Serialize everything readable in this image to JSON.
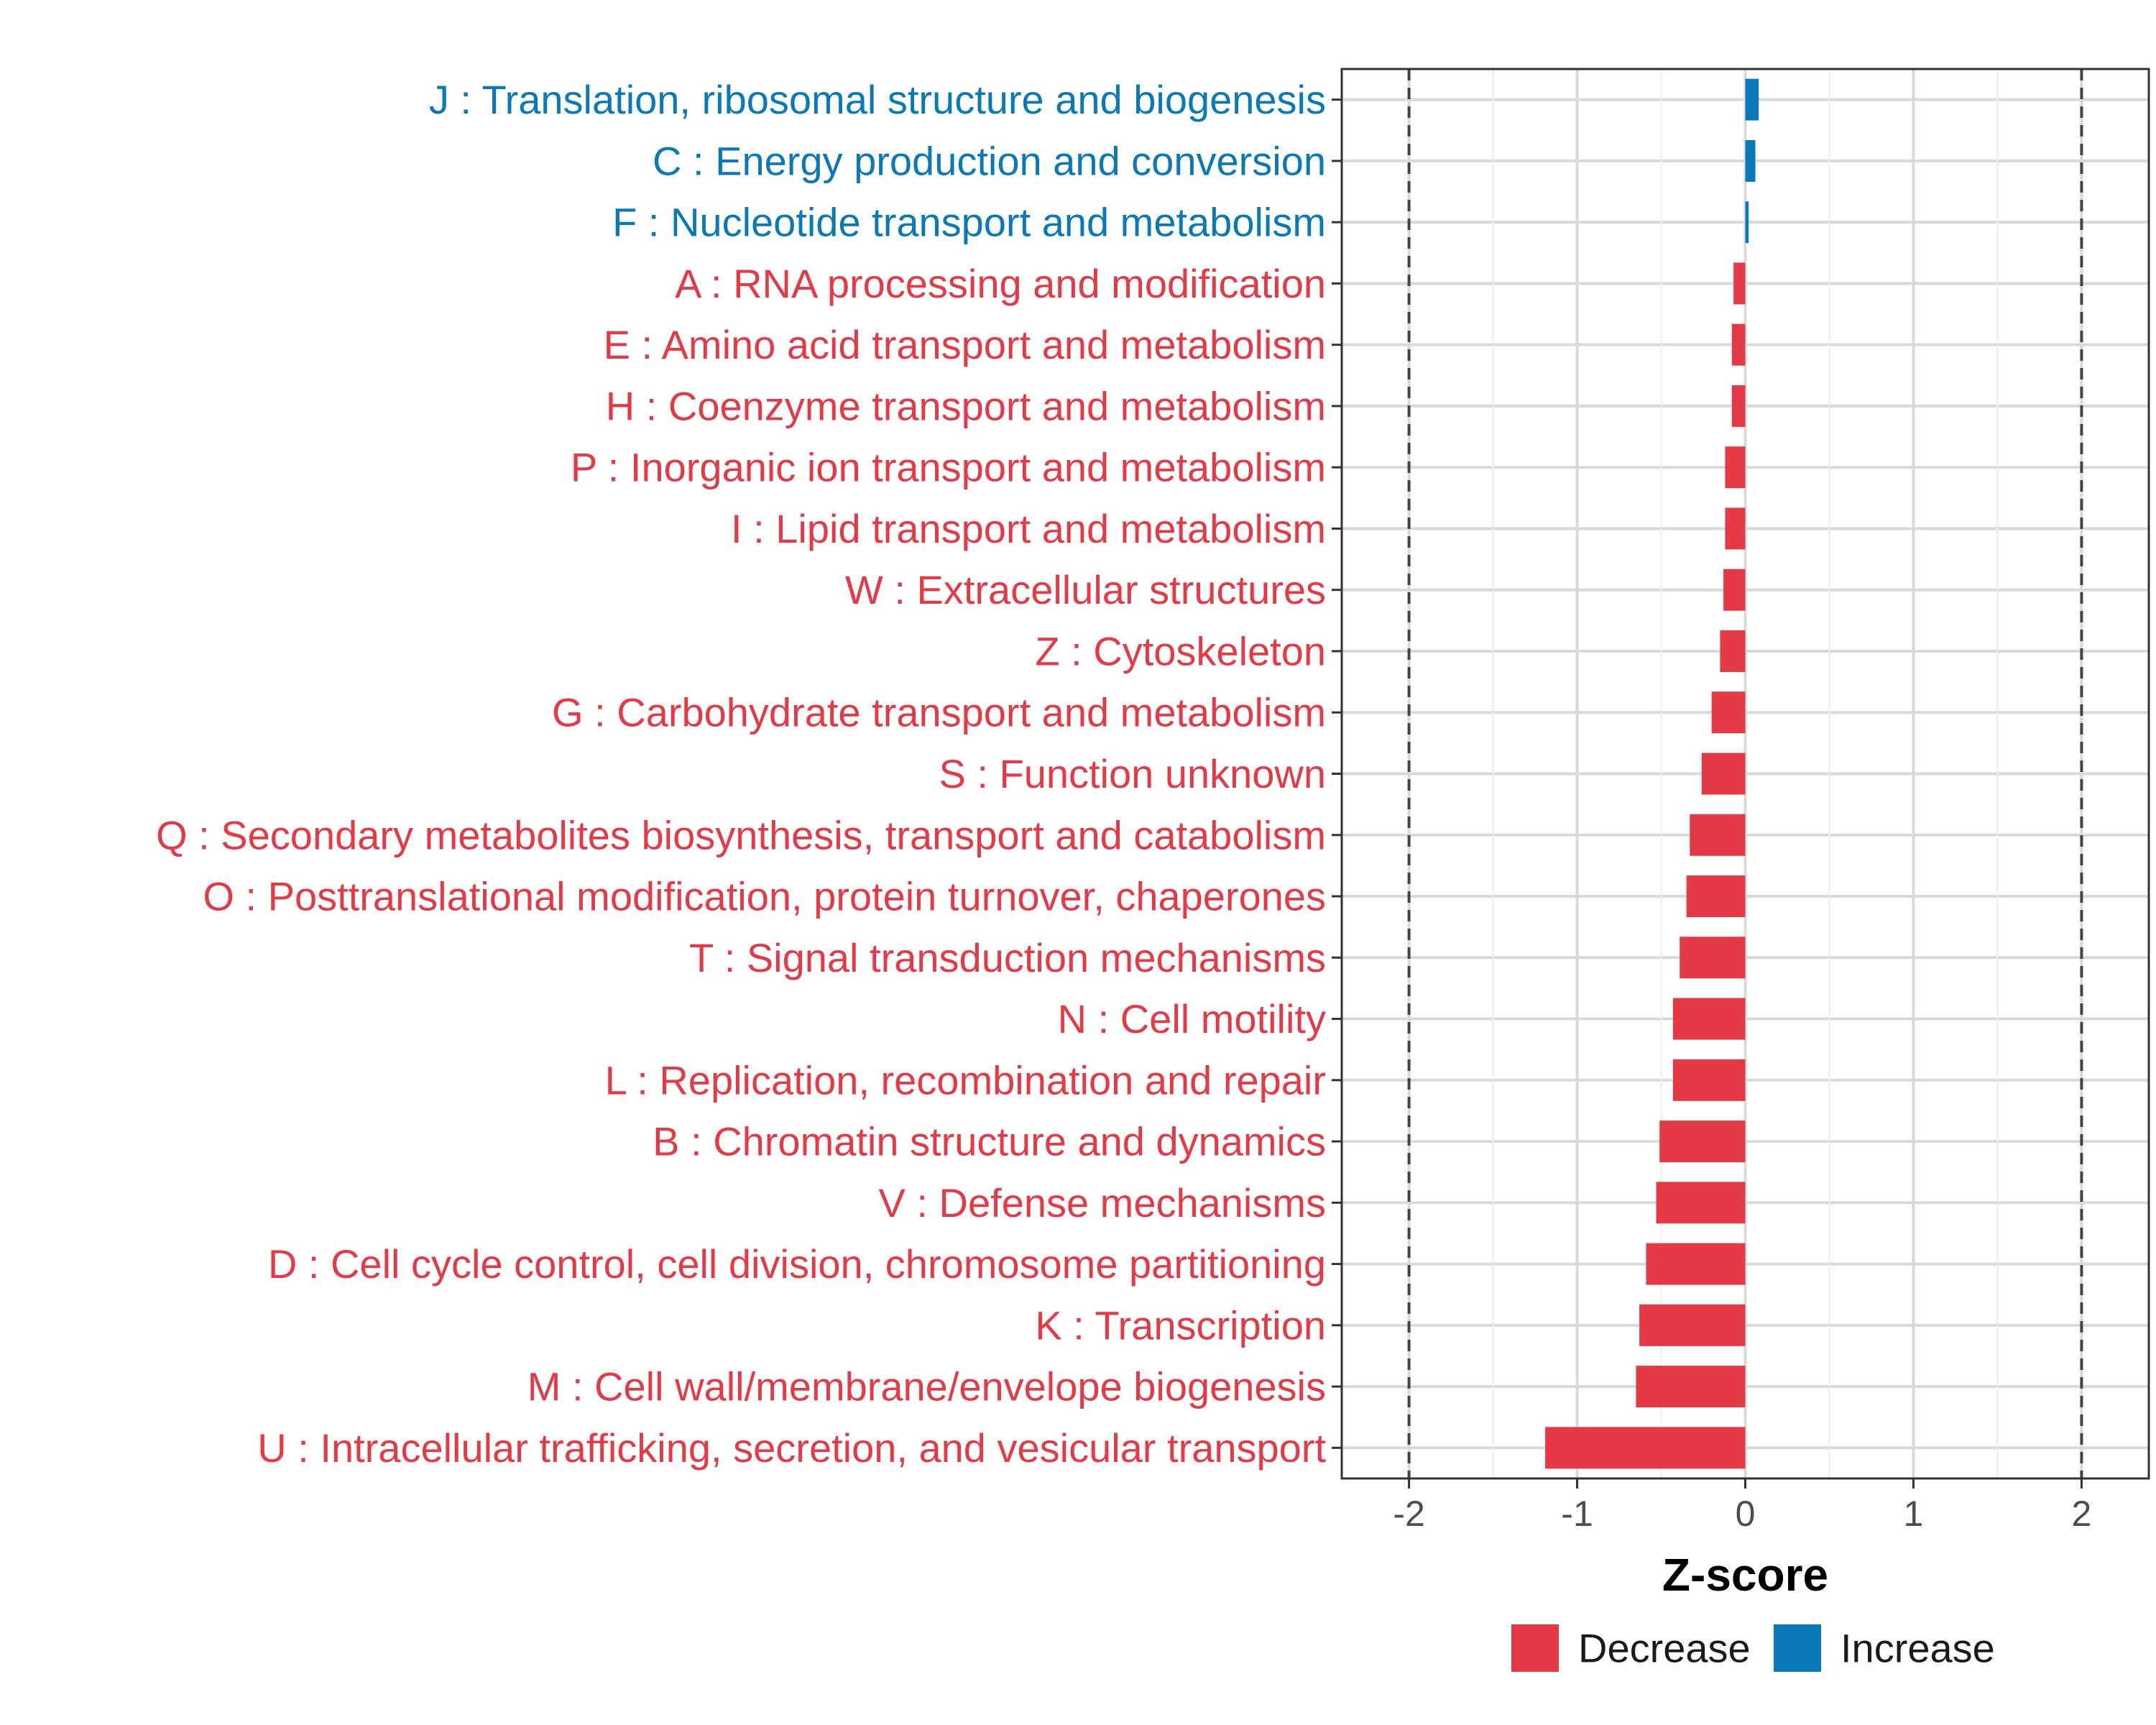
{
  "chart_data": {
    "type": "bar",
    "orientation": "horizontal",
    "xlabel": "Z-score",
    "xlim": [
      -2.4,
      2.4
    ],
    "xticks": [
      -2,
      -1,
      0,
      1,
      2
    ],
    "xtick_labels": [
      "-2",
      "-1",
      "0",
      "1",
      "2"
    ],
    "reference_lines": [
      -2,
      2
    ],
    "grid": true,
    "legend_position": "bottom",
    "colors": {
      "Decrease": "#E63946",
      "Increase": "#0A79B8"
    },
    "legend": [
      {
        "name": "Decrease",
        "color": "#E63946"
      },
      {
        "name": "Increase",
        "color": "#0A79B8"
      }
    ],
    "categories": [
      "J : Translation, ribosomal structure and biogenesis",
      "C : Energy production and conversion",
      "F : Nucleotide transport and metabolism",
      "A : RNA processing and modification",
      "E : Amino acid transport and metabolism",
      "H : Coenzyme transport and metabolism",
      "P : Inorganic ion transport and metabolism",
      "I : Lipid transport and metabolism",
      "W : Extracellular structures",
      "Z : Cytoskeleton",
      "G : Carbohydrate transport and metabolism",
      "S : Function unknown",
      "Q : Secondary metabolites biosynthesis, transport and catabolism",
      "O : Posttranslational modification, protein turnover, chaperones",
      "T : Signal transduction mechanisms",
      "N : Cell motility",
      "L : Replication, recombination and repair",
      "B : Chromatin structure and dynamics",
      "V : Defense mechanisms",
      "D : Cell cycle control, cell division, chromosome partitioning",
      "K : Transcription",
      "M : Cell wall/membrane/envelope biogenesis",
      "U : Intracellular trafficking, secretion, and vesicular transport"
    ],
    "values": [
      0.08,
      0.06,
      0.02,
      -0.07,
      -0.08,
      -0.08,
      -0.12,
      -0.12,
      -0.13,
      -0.15,
      -0.2,
      -0.26,
      -0.33,
      -0.35,
      -0.39,
      -0.43,
      -0.43,
      -0.51,
      -0.53,
      -0.59,
      -0.63,
      -0.65,
      -1.19
    ],
    "groups": [
      "Increase",
      "Increase",
      "Increase",
      "Decrease",
      "Decrease",
      "Decrease",
      "Decrease",
      "Decrease",
      "Decrease",
      "Decrease",
      "Decrease",
      "Decrease",
      "Decrease",
      "Decrease",
      "Decrease",
      "Decrease",
      "Decrease",
      "Decrease",
      "Decrease",
      "Decrease",
      "Decrease",
      "Decrease",
      "Decrease"
    ]
  }
}
